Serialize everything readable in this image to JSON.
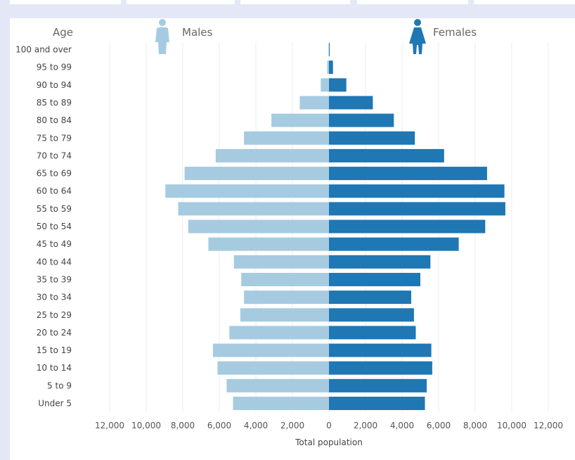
{
  "colors": {
    "male": "#a6cbe1",
    "female": "#1f77b4",
    "grid": "#ececec",
    "background": "#e4e8f6"
  },
  "chart_data": {
    "type": "bar",
    "orientation": "horizontal-population-pyramid",
    "title": "",
    "category_axis_title": "Age",
    "x_axis_title": "Total population",
    "xlim": [
      -12000,
      12000
    ],
    "x_tick_labels": [
      "12,000",
      "10,000",
      "8,000",
      "6,000",
      "4,000",
      "2,000",
      "0",
      "2,000",
      "4,000",
      "6,000",
      "8,000",
      "10,000",
      "12,000"
    ],
    "grid": true,
    "categories": [
      "100 and over",
      "95 to 99",
      "90 to 94",
      "85 to 89",
      "80 to 84",
      "75 to 79",
      "70 to 74",
      "65 to 69",
      "60 to 64",
      "55 to 59",
      "50 to 54",
      "45 to 49",
      "40 to 44",
      "35 to 39",
      "30 to 34",
      "25 to 29",
      "20 to 24",
      "15 to 19",
      "10 to 14",
      "5 to 9",
      "Under 5"
    ],
    "series": [
      {
        "name": "Males",
        "icon": "male-person-icon",
        "values": [
          20,
          100,
          450,
          1600,
          3150,
          4650,
          6200,
          7900,
          8950,
          8250,
          7700,
          6600,
          5200,
          4800,
          4650,
          4850,
          5450,
          6350,
          6100,
          5600,
          5250
        ]
      },
      {
        "name": "Females",
        "icon": "female-person-icon",
        "values": [
          40,
          220,
          950,
          2400,
          3550,
          4700,
          6300,
          8650,
          9600,
          9650,
          8550,
          7100,
          5550,
          5000,
          4500,
          4650,
          4750,
          5600,
          5650,
          5350,
          5250
        ]
      }
    ]
  }
}
